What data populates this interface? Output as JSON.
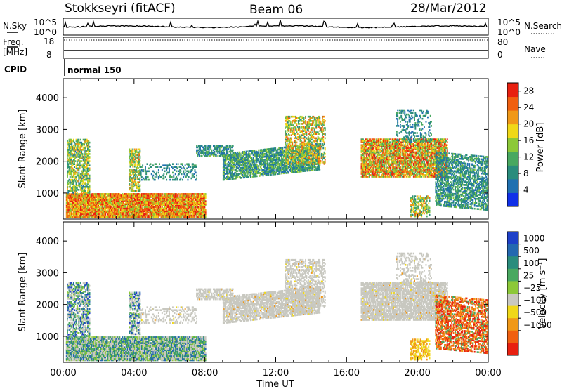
{
  "header": {
    "station": "Stokkseyri (fitACF)",
    "beam": "Beam 06",
    "date": "28/Mar/2012"
  },
  "panels": {
    "nsky_label": "N.Sky",
    "nsearch_label": "N.Search",
    "freq_label": "Freq.",
    "freq_unit": "[MHz]",
    "nave_label": "Nave",
    "cpid_label": "CPID",
    "cpid_value": "normal 150",
    "nsky_ticks": [
      "10^5",
      "10^0"
    ],
    "nsearch_ticks": [
      "10^5",
      "10^0"
    ],
    "freq_ticks": [
      "18",
      "8"
    ],
    "nave_ticks": [
      "80",
      "0"
    ]
  },
  "colors": {
    "ground_scatter": "#c8c8c0",
    "power_scale": [
      "#1030e8",
      "#2070b0",
      "#2a8c7c",
      "#49a860",
      "#8cc838",
      "#f0d818",
      "#f09818",
      "#f06010",
      "#e82010"
    ],
    "velocity_scale": [
      "#1e40c8",
      "#2468b0",
      "#2a8c7c",
      "#49a860",
      "#8cc838",
      "#c8c8c0",
      "#f0d818",
      "#f09818",
      "#f06010",
      "#e82010"
    ]
  },
  "chart_data": [
    {
      "type": "heatmap",
      "name": "power",
      "xlabel": "Time UT",
      "ylabel": "Slant Range [km]",
      "x_ticks": [
        "00:00",
        "04:00",
        "08:00",
        "12:00",
        "16:00",
        "20:00",
        "00:00"
      ],
      "x_range_hours": [
        0,
        24
      ],
      "y_ticks": [
        1000,
        2000,
        3000,
        4000
      ],
      "y_range_km": [
        180,
        4600
      ],
      "colorbar_label": "Power [dB]",
      "colorbar_ticks": [
        4,
        8,
        12,
        16,
        20,
        24,
        28
      ],
      "colorbar_range": [
        0,
        30
      ]
    },
    {
      "type": "heatmap",
      "name": "velocity",
      "xlabel": "Time UT",
      "ylabel": "Slant Range [km]",
      "x_ticks": [
        "00:00",
        "04:00",
        "08:00",
        "12:00",
        "16:00",
        "20:00",
        "00:00"
      ],
      "x_range_hours": [
        0,
        24
      ],
      "y_ticks": [
        1000,
        2000,
        3000,
        4000
      ],
      "y_range_km": [
        180,
        4600
      ],
      "colorbar_label": "Velocity [m s⁻¹]",
      "colorbar_ticks": [
        "1000",
        "500",
        "100",
        "25",
        "−25",
        "−100",
        "−500",
        "−1000"
      ],
      "ground_scatter": true
    }
  ]
}
